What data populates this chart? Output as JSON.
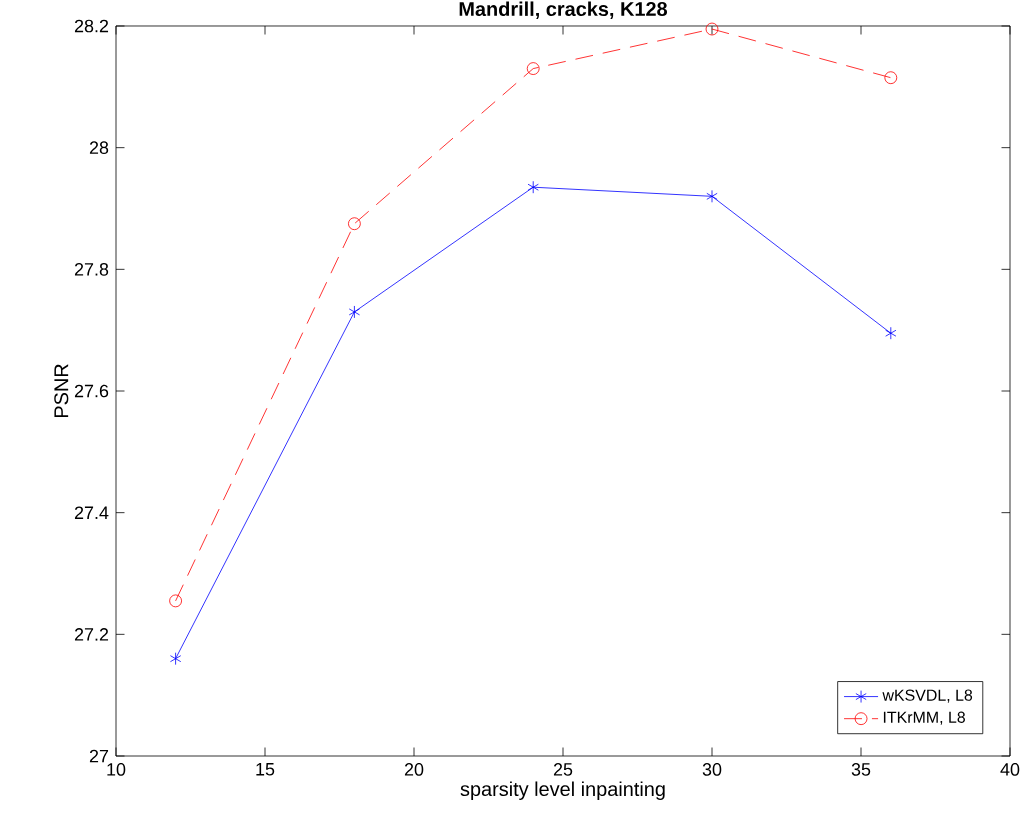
{
  "chart_data": {
    "type": "line",
    "title": "Mandrill, cracks, K128",
    "xlabel": "sparsity level inpainting",
    "ylabel": "PSNR",
    "x": [
      12,
      18,
      24,
      30,
      36
    ],
    "xlim": [
      10,
      40
    ],
    "xticks": [
      10,
      15,
      20,
      25,
      30,
      35,
      40
    ],
    "ylim": [
      27,
      28.2
    ],
    "yticks": [
      27,
      27.2,
      27.4,
      27.6,
      27.8,
      28,
      28.2
    ],
    "grid": false,
    "legend": "bottom right",
    "series": [
      {
        "name": "wKSVDL, L8",
        "color": "#0000ff",
        "marker": "cross",
        "line_style": "solid",
        "values": [
          27.16,
          27.73,
          27.935,
          27.92,
          27.695
        ]
      },
      {
        "name": "ITKrMM, L8",
        "color": "#ff0000",
        "marker": "circle",
        "line_style": "dashed",
        "values": [
          27.255,
          27.875,
          28.13,
          28.195,
          28.115
        ]
      }
    ]
  }
}
